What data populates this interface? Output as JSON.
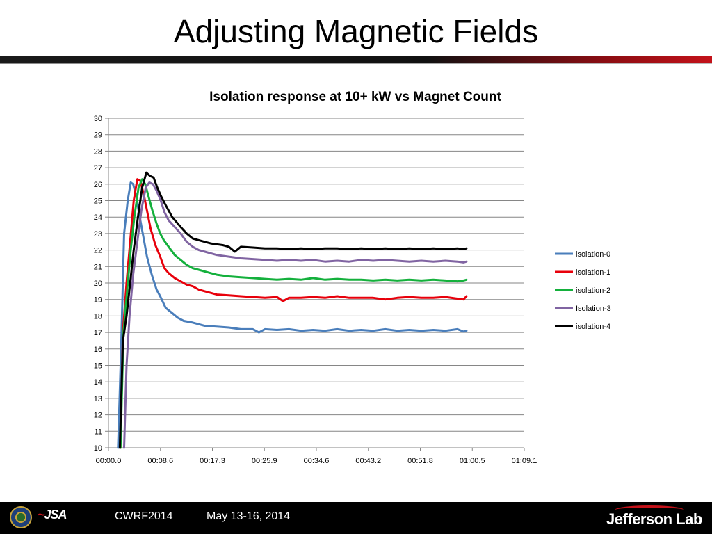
{
  "slide": {
    "title": "Adjusting Magnetic Fields",
    "footer_event": "CWRF2014",
    "footer_dates": "May 13-16, 2014",
    "logo_left_text": "JSA",
    "logo_right_text": "Jefferson Lab"
  },
  "colors": {
    "isolation-0": "#4a7ebb",
    "isolation-1": "#e8000b",
    "isolation-2": "#14b03c",
    "Isolation-3": "#8064a2",
    "isolation-4": "#000000"
  },
  "chart_data": {
    "type": "line",
    "title": "Isolation response at 10+ kW vs Magnet Count",
    "xlabel": "",
    "ylabel": "",
    "ylim": [
      10,
      30
    ],
    "xlim": [
      0,
      69.1
    ],
    "grid": true,
    "legend_placement": "right",
    "x_tick_labels": [
      "00:00.0",
      "00:08.6",
      "00:17.3",
      "00:25.9",
      "00:34.6",
      "00:43.2",
      "00:51.8",
      "01:00.5",
      "01:09.1"
    ],
    "y_tick_labels": [
      "10",
      "11",
      "12",
      "13",
      "14",
      "15",
      "16",
      "17",
      "18",
      "19",
      "20",
      "21",
      "22",
      "23",
      "24",
      "25",
      "26",
      "27",
      "28",
      "29",
      "30"
    ],
    "series": [
      {
        "name": "isolation-0",
        "color": "#4a7ebb",
        "points": [
          [
            1.6,
            10
          ],
          [
            2.1,
            16
          ],
          [
            2.6,
            23
          ],
          [
            3.2,
            25
          ],
          [
            3.7,
            26.1
          ],
          [
            4.1,
            26.0
          ],
          [
            4.6,
            25.3
          ],
          [
            5.2,
            24.0
          ],
          [
            5.8,
            22.8
          ],
          [
            6.4,
            21.6
          ],
          [
            7.2,
            20.5
          ],
          [
            8.0,
            19.6
          ],
          [
            8.6,
            19.2
          ],
          [
            9.5,
            18.5
          ],
          [
            10.5,
            18.2
          ],
          [
            11.5,
            17.9
          ],
          [
            12.5,
            17.7
          ],
          [
            14,
            17.6
          ],
          [
            16,
            17.4
          ],
          [
            18,
            17.35
          ],
          [
            20,
            17.3
          ],
          [
            22,
            17.2
          ],
          [
            24,
            17.2
          ],
          [
            25,
            17.0
          ],
          [
            26,
            17.2
          ],
          [
            28,
            17.15
          ],
          [
            30,
            17.2
          ],
          [
            32,
            17.1
          ],
          [
            34,
            17.15
          ],
          [
            36,
            17.1
          ],
          [
            38,
            17.2
          ],
          [
            40,
            17.1
          ],
          [
            42,
            17.15
          ],
          [
            44,
            17.1
          ],
          [
            46,
            17.2
          ],
          [
            48,
            17.1
          ],
          [
            50,
            17.15
          ],
          [
            52,
            17.1
          ],
          [
            54,
            17.15
          ],
          [
            56,
            17.1
          ],
          [
            58,
            17.2
          ],
          [
            59,
            17.05
          ],
          [
            59.5,
            17.1
          ]
        ]
      },
      {
        "name": "isolation-1",
        "color": "#e8000b",
        "points": [
          [
            2.0,
            10
          ],
          [
            2.4,
            17
          ],
          [
            3.0,
            20
          ],
          [
            3.6,
            22.5
          ],
          [
            4.2,
            25
          ],
          [
            4.8,
            26.3
          ],
          [
            5.3,
            26.2
          ],
          [
            5.9,
            25.3
          ],
          [
            6.4,
            24.4
          ],
          [
            7.0,
            23.3
          ],
          [
            7.8,
            22.3
          ],
          [
            8.6,
            21.6
          ],
          [
            9.3,
            20.9
          ],
          [
            10,
            20.6
          ],
          [
            11,
            20.3
          ],
          [
            12,
            20.1
          ],
          [
            13,
            19.9
          ],
          [
            14,
            19.8
          ],
          [
            15,
            19.6
          ],
          [
            16,
            19.5
          ],
          [
            17,
            19.4
          ],
          [
            18,
            19.3
          ],
          [
            20,
            19.25
          ],
          [
            22,
            19.2
          ],
          [
            24,
            19.15
          ],
          [
            26,
            19.1
          ],
          [
            28,
            19.15
          ],
          [
            29,
            18.9
          ],
          [
            30,
            19.1
          ],
          [
            32,
            19.1
          ],
          [
            34,
            19.15
          ],
          [
            36,
            19.1
          ],
          [
            38,
            19.2
          ],
          [
            40,
            19.1
          ],
          [
            42,
            19.1
          ],
          [
            44,
            19.1
          ],
          [
            46,
            19.0
          ],
          [
            48,
            19.1
          ],
          [
            50,
            19.15
          ],
          [
            52,
            19.1
          ],
          [
            54,
            19.1
          ],
          [
            56,
            19.15
          ],
          [
            58,
            19.05
          ],
          [
            59,
            19.0
          ],
          [
            59.5,
            19.2
          ]
        ]
      },
      {
        "name": "isolation-2",
        "color": "#14b03c",
        "points": [
          [
            2.0,
            10
          ],
          [
            2.5,
            17
          ],
          [
            3.1,
            19.5
          ],
          [
            3.7,
            22
          ],
          [
            4.3,
            24
          ],
          [
            5.0,
            25.8
          ],
          [
            5.6,
            26.3
          ],
          [
            6.1,
            26.0
          ],
          [
            6.7,
            25.2
          ],
          [
            7.3,
            24.4
          ],
          [
            8.0,
            23.6
          ],
          [
            8.6,
            23.0
          ],
          [
            9.2,
            22.6
          ],
          [
            10,
            22.2
          ],
          [
            11,
            21.7
          ],
          [
            12,
            21.4
          ],
          [
            13,
            21.1
          ],
          [
            14,
            20.9
          ],
          [
            15,
            20.8
          ],
          [
            16,
            20.7
          ],
          [
            17,
            20.6
          ],
          [
            18,
            20.5
          ],
          [
            20,
            20.4
          ],
          [
            22,
            20.35
          ],
          [
            24,
            20.3
          ],
          [
            26,
            20.25
          ],
          [
            28,
            20.2
          ],
          [
            30,
            20.25
          ],
          [
            32,
            20.2
          ],
          [
            34,
            20.3
          ],
          [
            36,
            20.2
          ],
          [
            38,
            20.25
          ],
          [
            40,
            20.2
          ],
          [
            42,
            20.2
          ],
          [
            44,
            20.15
          ],
          [
            46,
            20.2
          ],
          [
            48,
            20.15
          ],
          [
            50,
            20.2
          ],
          [
            52,
            20.15
          ],
          [
            54,
            20.2
          ],
          [
            56,
            20.15
          ],
          [
            58,
            20.1
          ],
          [
            59,
            20.15
          ],
          [
            59.5,
            20.2
          ]
        ]
      },
      {
        "name": "Isolation-3",
        "color": "#8064a2",
        "points": [
          [
            2.6,
            10
          ],
          [
            3.0,
            15
          ],
          [
            3.5,
            18
          ],
          [
            4.1,
            20.5
          ],
          [
            4.8,
            22.5
          ],
          [
            5.5,
            24.5
          ],
          [
            6.2,
            25.8
          ],
          [
            6.8,
            26.1
          ],
          [
            7.4,
            26.0
          ],
          [
            8.0,
            25.6
          ],
          [
            8.7,
            25.0
          ],
          [
            9.3,
            24.3
          ],
          [
            10,
            23.8
          ],
          [
            11,
            23.4
          ],
          [
            12,
            23.0
          ],
          [
            13,
            22.5
          ],
          [
            14,
            22.2
          ],
          [
            15,
            22.0
          ],
          [
            16,
            21.9
          ],
          [
            17,
            21.8
          ],
          [
            18,
            21.7
          ],
          [
            20,
            21.6
          ],
          [
            22,
            21.5
          ],
          [
            24,
            21.45
          ],
          [
            26,
            21.4
          ],
          [
            28,
            21.35
          ],
          [
            30,
            21.4
          ],
          [
            32,
            21.35
          ],
          [
            34,
            21.4
          ],
          [
            36,
            21.3
          ],
          [
            38,
            21.35
          ],
          [
            40,
            21.3
          ],
          [
            42,
            21.4
          ],
          [
            44,
            21.35
          ],
          [
            46,
            21.4
          ],
          [
            48,
            21.35
          ],
          [
            50,
            21.3
          ],
          [
            52,
            21.35
          ],
          [
            54,
            21.3
          ],
          [
            56,
            21.35
          ],
          [
            58,
            21.3
          ],
          [
            59,
            21.25
          ],
          [
            59.5,
            21.3
          ]
        ]
      },
      {
        "name": "isolation-4",
        "color": "#000000",
        "points": [
          [
            1.9,
            10
          ],
          [
            2.4,
            16.5
          ],
          [
            3.0,
            18
          ],
          [
            3.6,
            20
          ],
          [
            4.2,
            22
          ],
          [
            4.9,
            24
          ],
          [
            5.6,
            25.8
          ],
          [
            6.3,
            26.7
          ],
          [
            6.9,
            26.5
          ],
          [
            7.5,
            26.4
          ],
          [
            8.1,
            25.8
          ],
          [
            8.7,
            25.3
          ],
          [
            9.4,
            24.8
          ],
          [
            10,
            24.4
          ],
          [
            10.6,
            24.0
          ],
          [
            11.3,
            23.7
          ],
          [
            12,
            23.4
          ],
          [
            13,
            23.0
          ],
          [
            14,
            22.7
          ],
          [
            15,
            22.6
          ],
          [
            16,
            22.5
          ],
          [
            17,
            22.4
          ],
          [
            18,
            22.35
          ],
          [
            19,
            22.3
          ],
          [
            20,
            22.2
          ],
          [
            21,
            21.9
          ],
          [
            22,
            22.2
          ],
          [
            24,
            22.15
          ],
          [
            26,
            22.1
          ],
          [
            28,
            22.1
          ],
          [
            30,
            22.05
          ],
          [
            32,
            22.1
          ],
          [
            34,
            22.05
          ],
          [
            36,
            22.1
          ],
          [
            38,
            22.1
          ],
          [
            40,
            22.05
          ],
          [
            42,
            22.1
          ],
          [
            44,
            22.05
          ],
          [
            46,
            22.1
          ],
          [
            48,
            22.05
          ],
          [
            50,
            22.1
          ],
          [
            52,
            22.05
          ],
          [
            54,
            22.1
          ],
          [
            56,
            22.05
          ],
          [
            58,
            22.1
          ],
          [
            59,
            22.05
          ],
          [
            59.5,
            22.1
          ]
        ]
      }
    ]
  }
}
